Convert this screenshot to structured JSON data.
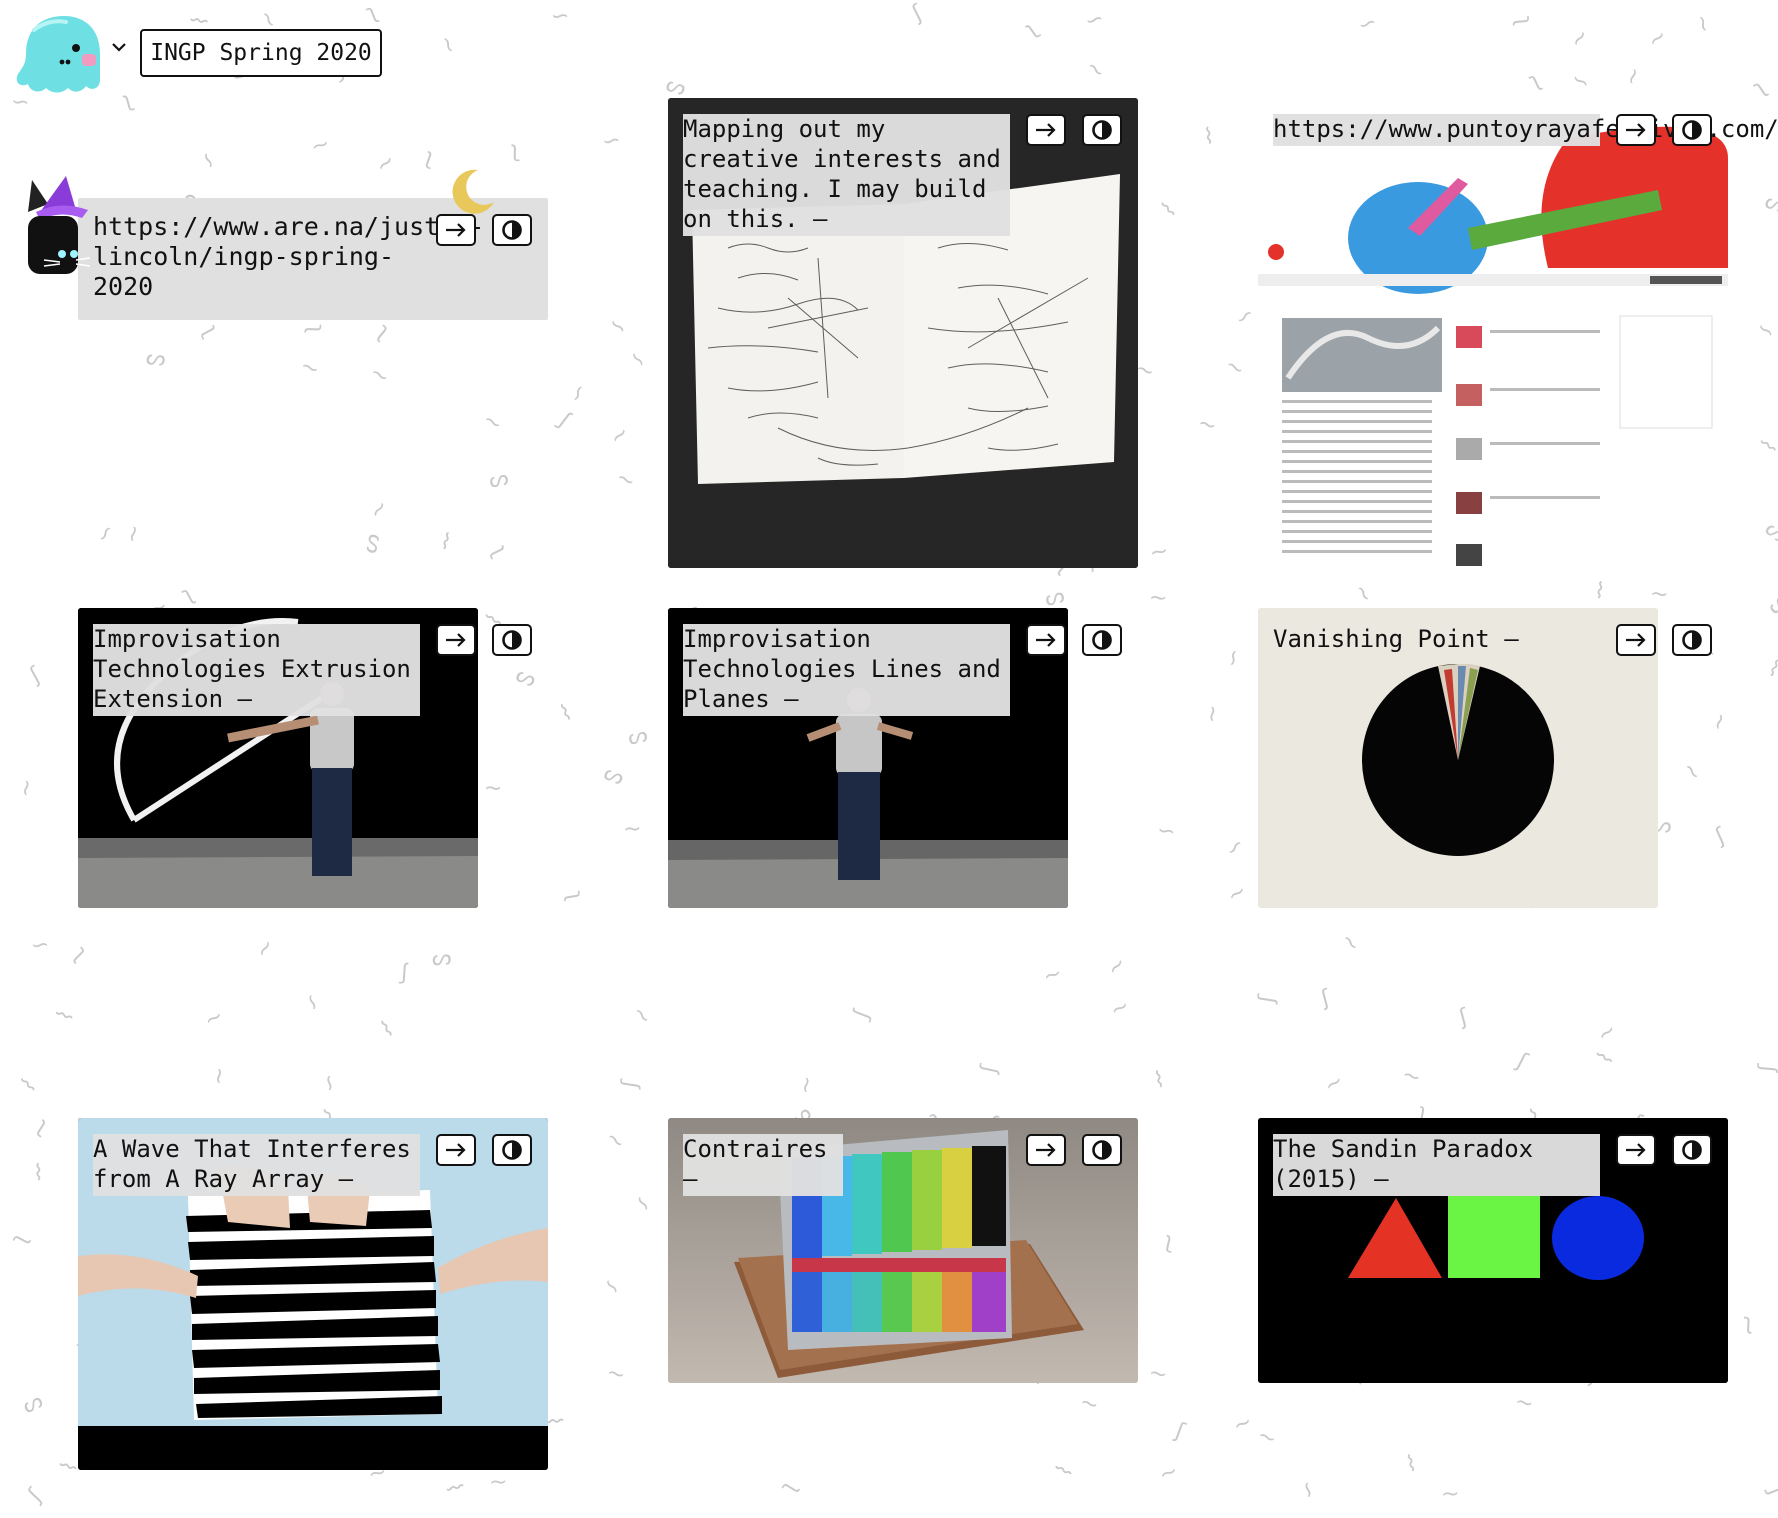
{
  "header": {
    "mascot_icon": "ghost-mascot-icon",
    "channel_title": "INGP Spring 2020"
  },
  "cards": [
    {
      "id": "are-na-link",
      "title": "https://www.are.na/justin-lincoln/ingp-spring-2020",
      "media": "link-text",
      "decoration": [
        "witch-cat-icon",
        "moon-icon"
      ]
    },
    {
      "id": "mapping",
      "title": "Mapping out my creative interests and teaching. I may build on this. –",
      "media": "handwritten-mind-map"
    },
    {
      "id": "puntoyraya",
      "title": "https://www.puntoyrayafestival.com/",
      "media": "website-screenshot"
    },
    {
      "id": "extrusion",
      "title": "Improvisation Technologies Extrusion Extension –",
      "media": "video-still-dancer"
    },
    {
      "id": "lines-planes",
      "title": "Improvisation Technologies Lines and Planes –",
      "media": "video-still-dancer"
    },
    {
      "id": "vanishing-point",
      "title": "Vanishing Point –",
      "media": "black-circle"
    },
    {
      "id": "wave",
      "title": "A Wave That Interferes from A Ray Array –",
      "media": "hands-striped-paper"
    },
    {
      "id": "contraires",
      "title": "Contraires –",
      "media": "color-bars-sculpture"
    },
    {
      "id": "sandin",
      "title": "The Sandin Paradox (2015) –",
      "media": "triangle-square-circle"
    }
  ],
  "buttons": {
    "open_icon": "arrow-right-icon",
    "view_icon": "half-circle-contrast-icon"
  },
  "colors": {
    "mascot": "#6ee0e4",
    "card_label_bg": "#e0e0e0",
    "triangle": "#e43225",
    "square": "#6af545",
    "circle": "#0a2ae0",
    "moon": "#e8c85a",
    "witch_hat": "#8a3cd8"
  }
}
